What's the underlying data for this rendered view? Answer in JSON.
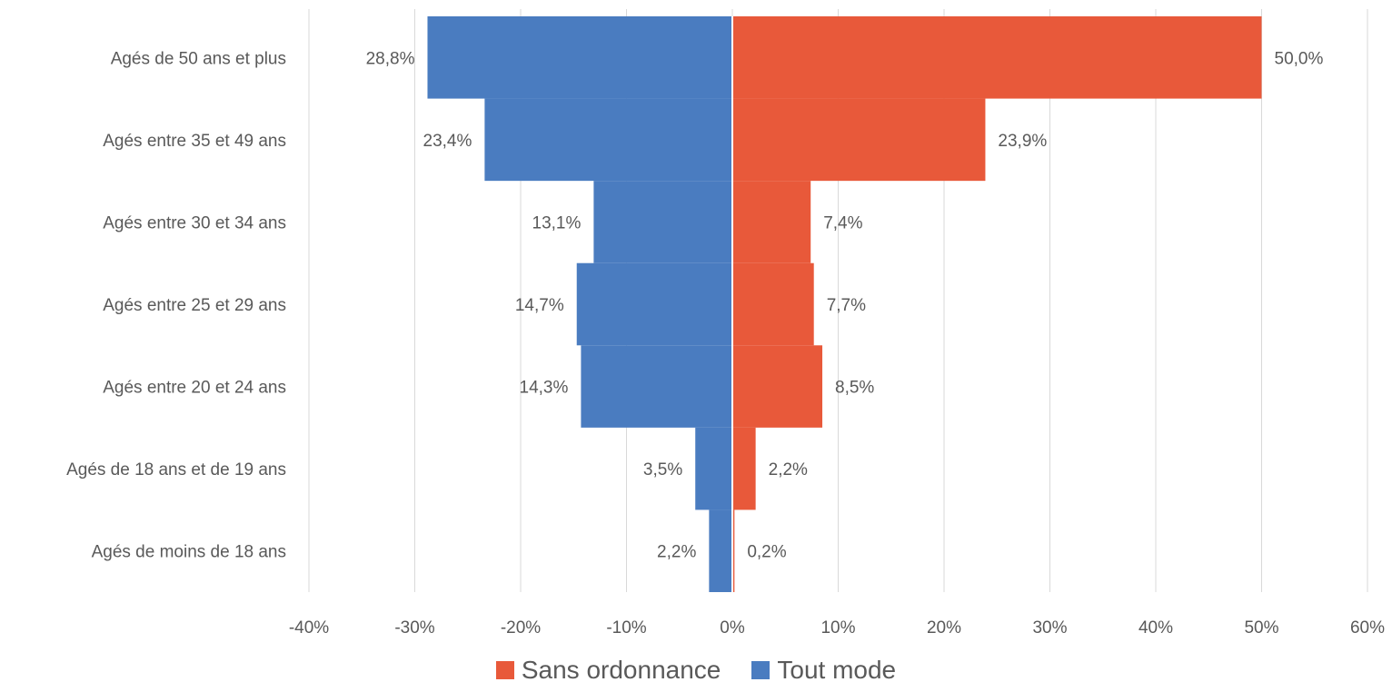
{
  "chart_data": {
    "type": "bar",
    "orientation": "horizontal",
    "layout": "diverging",
    "categories": [
      "Agés de 50 ans et plus",
      "Agés entre 35 et 49 ans",
      "Agés entre 30 et 34 ans",
      "Agés entre 25 et 29 ans",
      "Agés entre 20 et 24 ans",
      "Agés de 18 ans et de 19 ans",
      "Agés de moins de 18 ans"
    ],
    "series": [
      {
        "name": "Sans ordonnance",
        "side": "right",
        "color": "#E8593A",
        "values": [
          50.0,
          23.9,
          7.4,
          7.7,
          8.5,
          2.2,
          0.2
        ],
        "labels": [
          "50,0%",
          "23,9%",
          "7,4%",
          "7,7%",
          "8,5%",
          "2,2%",
          "0,2%"
        ]
      },
      {
        "name": "Tout mode",
        "side": "left",
        "color": "#4A7CC0",
        "values": [
          28.8,
          23.4,
          13.1,
          14.7,
          14.3,
          3.5,
          2.2
        ],
        "labels": [
          "28,8%",
          "23,4%",
          "13,1%",
          "14,7%",
          "14,3%",
          "3,5%",
          "2,2%"
        ]
      }
    ],
    "xlim": [
      -40,
      60
    ],
    "xticks": [
      -40,
      -30,
      -20,
      -10,
      0,
      10,
      20,
      30,
      40,
      50,
      60
    ],
    "xtick_labels": [
      "-40%",
      "-30%",
      "-20%",
      "-10%",
      "0%",
      "10%",
      "20%",
      "30%",
      "40%",
      "50%",
      "60%"
    ],
    "grid": "vertical",
    "legend": "bottom-center"
  },
  "legend": [
    {
      "label": "Sans ordonnance",
      "color": "#E8593A"
    },
    {
      "label": "Tout mode",
      "color": "#4A7CC0"
    }
  ]
}
